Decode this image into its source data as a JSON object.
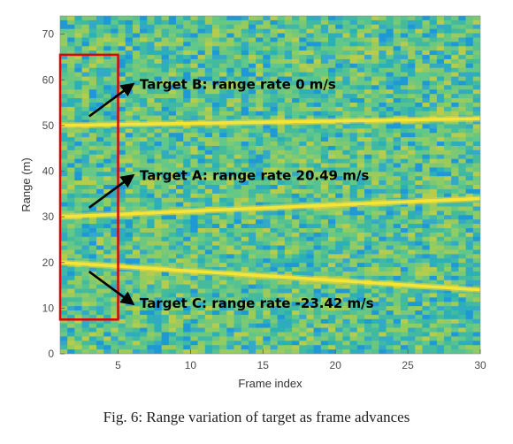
{
  "caption": "Fig. 6: Range variation of target as frame advances",
  "chart_data": {
    "type": "heatmap",
    "xlabel": "Frame index",
    "ylabel": "Range (m)",
    "xlim": [
      1,
      30
    ],
    "ylim": [
      0,
      74
    ],
    "xticks": [
      5,
      10,
      15,
      20,
      25,
      30
    ],
    "yticks": [
      0,
      10,
      20,
      30,
      40,
      50,
      60,
      70
    ],
    "grid": false,
    "colormap": "parula",
    "series": [
      {
        "x": [
          1,
          30
        ],
        "y": [
          50.0,
          51.5
        ]
      },
      {
        "x": [
          1,
          30
        ],
        "y": [
          30.0,
          34.0
        ]
      },
      {
        "x": [
          1,
          30
        ],
        "y": [
          20.0,
          14.0
        ]
      }
    ],
    "annotations": [
      {
        "text": "Target B: range rate 0 m/s",
        "arrow_from": [
          3,
          52
        ],
        "arrow_to": [
          6,
          59
        ]
      },
      {
        "text": "Target A: range rate 20.49 m/s",
        "arrow_from": [
          3,
          32
        ],
        "arrow_to": [
          6,
          39
        ]
      },
      {
        "text": "Target C: range rate -23.42 m/s",
        "arrow_from": [
          3,
          18
        ],
        "arrow_to": [
          6,
          11
        ]
      }
    ],
    "highlight_box": {
      "x0": 1,
      "x1": 5,
      "y0": 7.5,
      "y1": 65.5,
      "color": "#e00000"
    },
    "colors": {
      "track": "#f5e635",
      "box": "#e00000",
      "arrow": "#000000"
    }
  }
}
